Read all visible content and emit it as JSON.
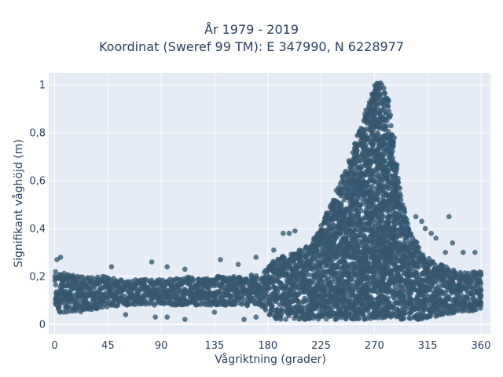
{
  "chart_data": {
    "type": "scatter",
    "title_line1": "År 1979 - 2019",
    "title_line2": "Koordinat (Sweref 99 TM): E 347990, N 6228977",
    "xlabel": "Vågriktning (grader)",
    "ylabel": "Signifikant våghöjd (m)",
    "xlim": [
      -5,
      368
    ],
    "ylim": [
      -0.04,
      1.05
    ],
    "x_ticks": [
      0,
      45,
      90,
      135,
      180,
      225,
      270,
      315,
      360
    ],
    "x_tick_labels": [
      "0",
      "45",
      "90",
      "135",
      "180",
      "225",
      "270",
      "315",
      "360"
    ],
    "y_ticks": [
      0,
      0.2,
      0.4,
      0.6,
      0.8,
      1
    ],
    "y_tick_labels": [
      "0",
      "0,2",
      "0,4",
      "0,6",
      "0,8",
      "1"
    ],
    "grid": true,
    "marker_color": "#34576f",
    "plot_bg": "#e5ecf6",
    "density_profile": {
      "x": [
        0,
        10,
        20,
        40,
        60,
        90,
        120,
        150,
        175,
        185,
        200,
        215,
        225,
        235,
        245,
        255,
        265,
        270,
        275,
        280,
        285,
        290,
        300,
        310,
        320,
        340,
        360
      ],
      "y_low": [
        0.05,
        0.05,
        0.05,
        0.07,
        0.08,
        0.08,
        0.08,
        0.08,
        0.07,
        0.02,
        0.02,
        0.02,
        0.02,
        0.02,
        0.02,
        0.02,
        0.02,
        0.02,
        0.02,
        0.02,
        0.02,
        0.02,
        0.02,
        0.02,
        0.03,
        0.05,
        0.06
      ],
      "y_high": [
        0.22,
        0.21,
        0.2,
        0.2,
        0.19,
        0.19,
        0.2,
        0.2,
        0.21,
        0.27,
        0.3,
        0.33,
        0.42,
        0.53,
        0.65,
        0.78,
        0.93,
        1.01,
        1.02,
        0.97,
        0.82,
        0.58,
        0.38,
        0.3,
        0.26,
        0.22,
        0.22
      ]
    },
    "outliers": [
      {
        "x": 2,
        "y": 0.27
      },
      {
        "x": 5,
        "y": 0.28
      },
      {
        "x": 48,
        "y": 0.24
      },
      {
        "x": 82,
        "y": 0.26
      },
      {
        "x": 95,
        "y": 0.24
      },
      {
        "x": 140,
        "y": 0.27
      },
      {
        "x": 170,
        "y": 0.28
      },
      {
        "x": 155,
        "y": 0.25
      },
      {
        "x": 110,
        "y": 0.23
      },
      {
        "x": 185,
        "y": 0.31
      },
      {
        "x": 193,
        "y": 0.38
      },
      {
        "x": 198,
        "y": 0.38
      },
      {
        "x": 203,
        "y": 0.39
      },
      {
        "x": 305,
        "y": 0.45
      },
      {
        "x": 310,
        "y": 0.43
      },
      {
        "x": 313,
        "y": 0.4
      },
      {
        "x": 318,
        "y": 0.38
      },
      {
        "x": 322,
        "y": 0.36
      },
      {
        "x": 330,
        "y": 0.3
      },
      {
        "x": 333,
        "y": 0.45
      },
      {
        "x": 336,
        "y": 0.34
      },
      {
        "x": 345,
        "y": 0.3
      },
      {
        "x": 355,
        "y": 0.3
      },
      {
        "x": 60,
        "y": 0.04
      },
      {
        "x": 85,
        "y": 0.03
      },
      {
        "x": 95,
        "y": 0.03
      },
      {
        "x": 110,
        "y": 0.02
      },
      {
        "x": 135,
        "y": 0.05
      },
      {
        "x": 160,
        "y": 0.02
      },
      {
        "x": 170,
        "y": 0.03
      }
    ]
  }
}
